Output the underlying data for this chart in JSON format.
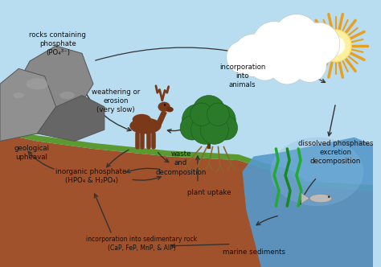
{
  "bg_sky_color": "#b8ddf0",
  "bg_ground_color": "#a0522d",
  "bg_grass_color": "#5a9a30",
  "water_color": "#5599cc",
  "water_light": "#88bbdd",
  "labels": {
    "rocks": "rocks containing\nphosphate\n(PO₄³⁻)",
    "weathering": "weathering or\nerosion\n(very slow)",
    "incorporation_animals": "incorporation\ninto\nanimals",
    "geological": "geological\nupheaval",
    "inorganic": "inorganic phosphate\n(HPO₄ & H₂PO₄)",
    "waste": "waste\nand\ndecomposition",
    "plant_uptake": "plant uptake",
    "sedimentary": "incorporation into sedimentary rock\n(CaP, FeP, MnP, & AlP)",
    "marine": "marine sediments",
    "dissolved": "dissolved phosphates\nexcretion\ndecomposition"
  },
  "arrow_color": "#333333",
  "text_color": "#111111",
  "rock_color": "#888888",
  "rock_dark": "#666666",
  "rock_light": "#aaaaaa",
  "moose_color": "#7a3a1a",
  "plant_color": "#2a7a2a",
  "plant_dark": "#1a5a1a",
  "root_color": "#8a6a2a",
  "fish_color": "#aaaaaa",
  "cloud_color": "#ffffff",
  "sun_color": "#ffe066",
  "sun_ray_color": "#e8a020",
  "sun_inner_color": "#fff0a0",
  "seaweed_color": "#228822"
}
